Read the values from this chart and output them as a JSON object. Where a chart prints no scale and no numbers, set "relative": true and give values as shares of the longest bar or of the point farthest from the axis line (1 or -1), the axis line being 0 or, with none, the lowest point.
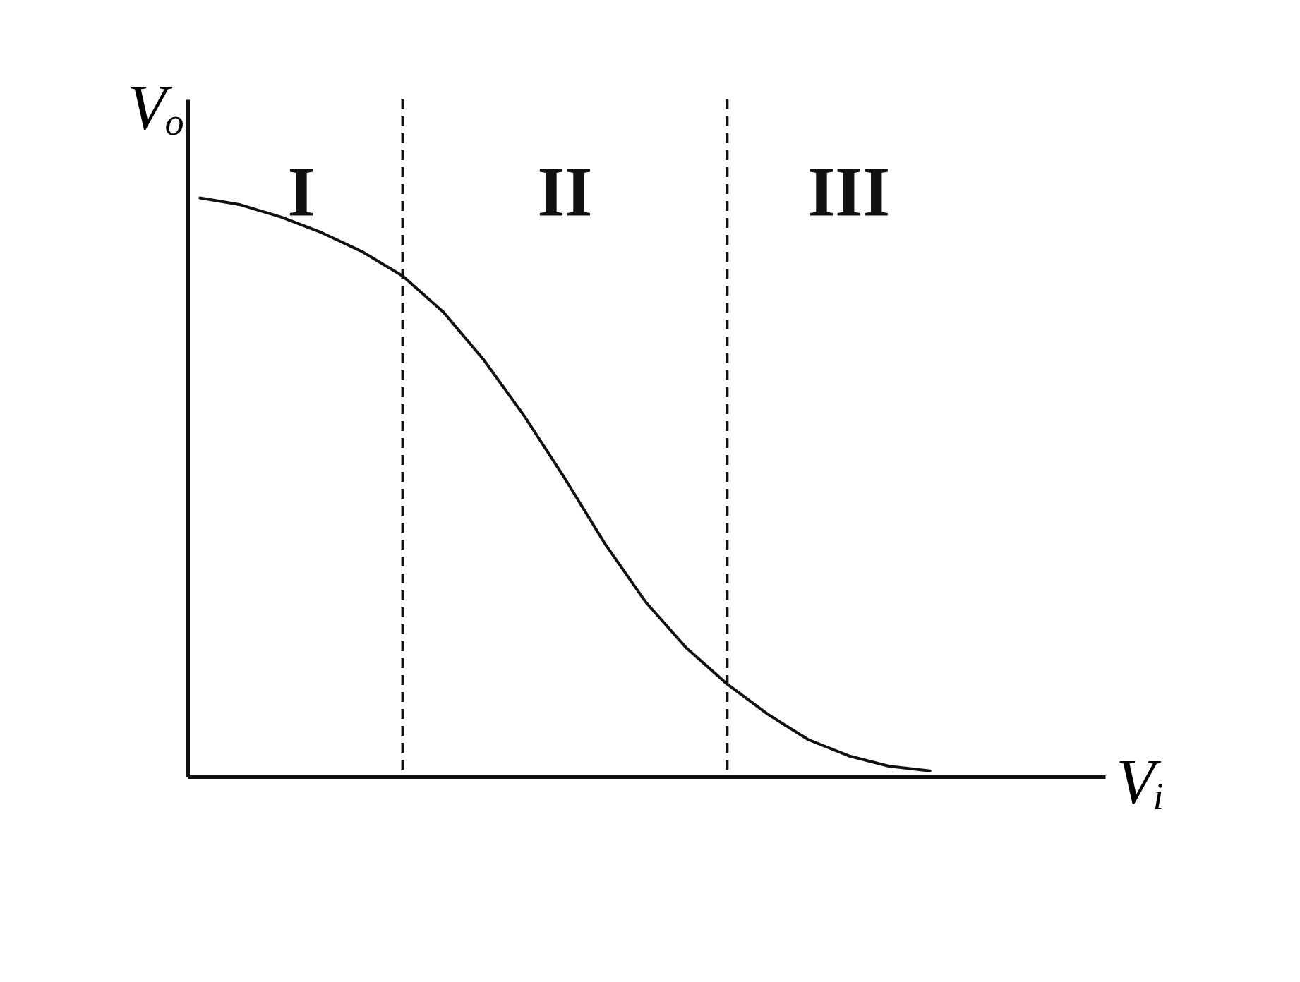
{
  "chart_data": {
    "type": "line",
    "relative": true,
    "xlabel": "Vᵢ",
    "ylabel": "Vₒ",
    "tick_labels": false,
    "grid": false,
    "marker": "none",
    "line_style": "solid",
    "categories": [
      null,
      null,
      null,
      null,
      null,
      null,
      null,
      null,
      null,
      null,
      null,
      null,
      null,
      null,
      null,
      null,
      null,
      null,
      null
    ],
    "series": [
      {
        "color": "#111111",
        "values": [
          1,
          0.988,
          0.967,
          0.94,
          0.907,
          0.865,
          0.803,
          0.72,
          0.623,
          0.515,
          0.401,
          0.301,
          0.222,
          0.16,
          0.108,
          0.064,
          0.036,
          0.018,
          0.01
        ]
      }
    ],
    "annotations": [
      "I",
      "II",
      "III"
    ]
  }
}
